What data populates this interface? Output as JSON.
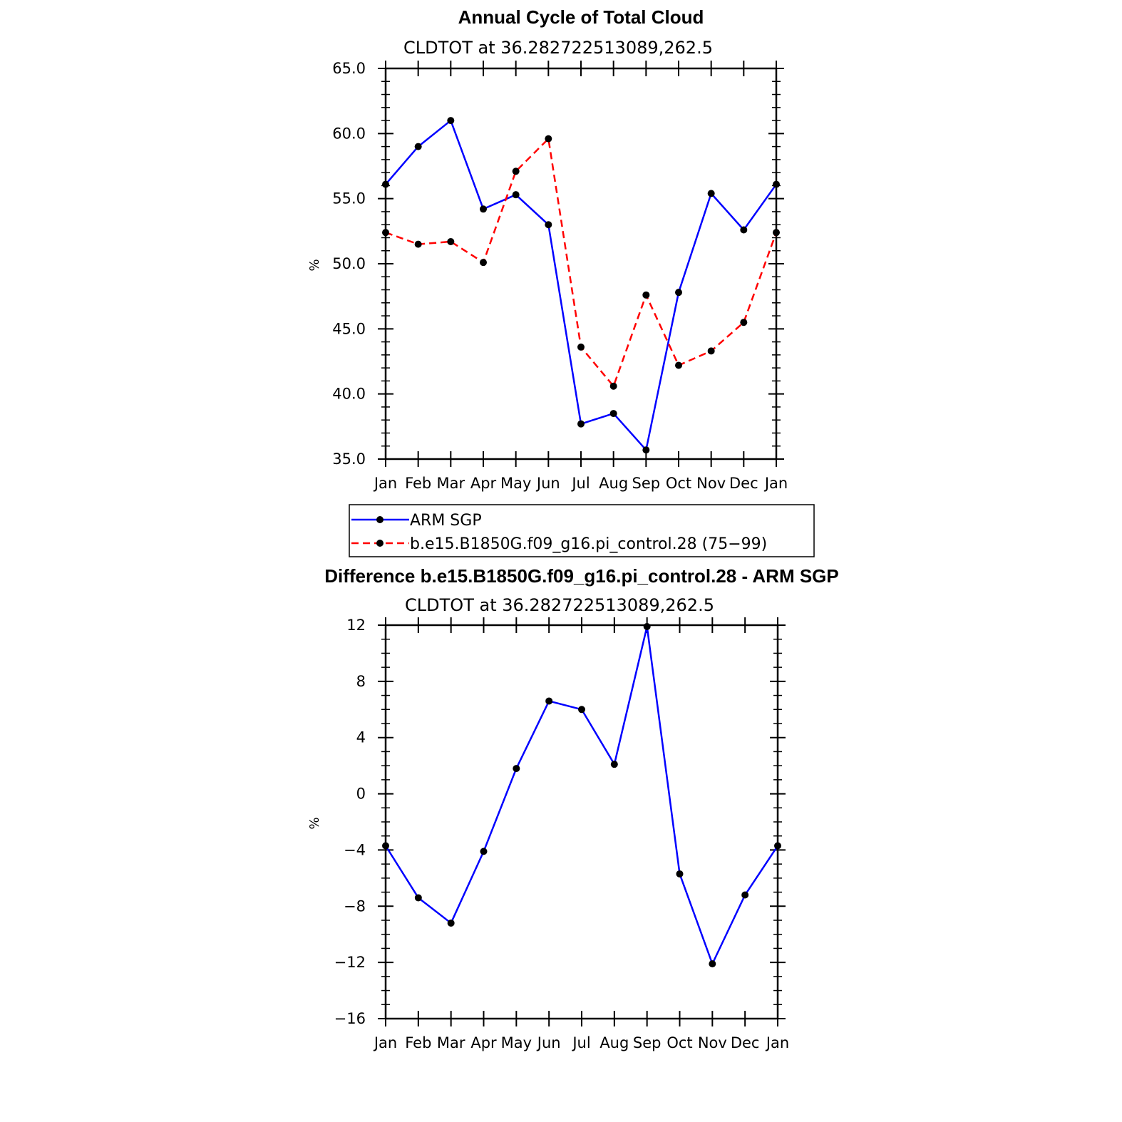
{
  "chart_data": [
    {
      "type": "line",
      "title": "Annual Cycle of Total Cloud",
      "subtitle": "CLDTOT at 36.282722513089,262.5",
      "ylabel": "%",
      "xlabel": "",
      "categories": [
        "Jan",
        "Feb",
        "Mar",
        "Apr",
        "May",
        "Jun",
        "Jul",
        "Aug",
        "Sep",
        "Oct",
        "Nov",
        "Dec",
        "Jan"
      ],
      "ylim": [
        35.0,
        65.0
      ],
      "yticks": [
        35.0,
        40.0,
        45.0,
        50.0,
        55.0,
        60.0,
        65.0
      ],
      "ytick_labels": [
        "35.0",
        "40.0",
        "45.0",
        "50.0",
        "55.0",
        "60.0",
        "65.0"
      ],
      "grid": false,
      "legend_position": "below",
      "series": [
        {
          "name": "ARM SGP",
          "color": "#0000ff",
          "dash": "solid",
          "values": [
            56.1,
            59.0,
            61.0,
            54.2,
            55.3,
            53.0,
            37.7,
            38.5,
            35.7,
            47.8,
            55.4,
            52.6,
            56.1
          ]
        },
        {
          "name": "b.e15.B1850G.f09_g16.pi_control.28 (75−99)",
          "color": "#ff0000",
          "dash": "dashed",
          "values": [
            52.4,
            51.5,
            51.7,
            50.1,
            57.1,
            59.6,
            43.6,
            40.6,
            47.6,
            42.2,
            43.3,
            45.5,
            52.4
          ]
        }
      ]
    },
    {
      "type": "line",
      "title": "Difference b.e15.B1850G.f09_g16.pi_control.28 - ARM SGP",
      "subtitle": "CLDTOT at 36.282722513089,262.5",
      "ylabel": "%",
      "xlabel": "",
      "categories": [
        "Jan",
        "Feb",
        "Mar",
        "Apr",
        "May",
        "Jun",
        "Jul",
        "Aug",
        "Sep",
        "Oct",
        "Nov",
        "Dec",
        "Jan"
      ],
      "ylim": [
        -16,
        12
      ],
      "yticks": [
        -16,
        -12,
        -8,
        -4,
        0,
        4,
        8,
        12
      ],
      "ytick_labels": [
        "−16",
        "−12",
        "−8",
        "−4",
        "0",
        "4",
        "8",
        "12"
      ],
      "grid": false,
      "series": [
        {
          "color": "#0000ff",
          "dash": "solid",
          "values": [
            -3.7,
            -7.4,
            -9.2,
            -4.1,
            1.8,
            6.6,
            6.0,
            2.1,
            11.9,
            -5.7,
            -12.1,
            -7.2,
            -3.7
          ]
        }
      ]
    }
  ]
}
